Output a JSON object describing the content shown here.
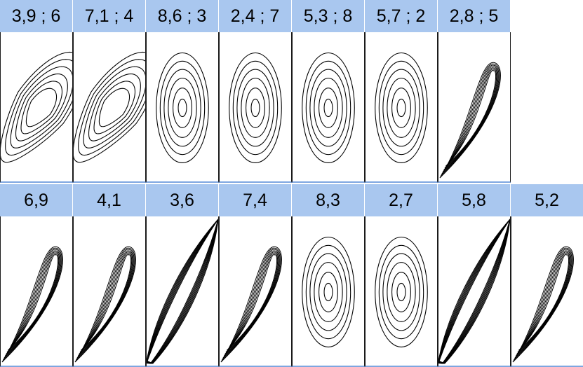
{
  "colors": {
    "header_bg": "#a9c7ef",
    "rule": "#7ea6e0",
    "contour": "#000000"
  },
  "rows": [
    {
      "panels": [
        {
          "label": "3,9 ; 6",
          "shape": "skew-ellipse"
        },
        {
          "label": "7,1 ; 4",
          "shape": "skew-ellipse"
        },
        {
          "label": "8,6 ; 3",
          "shape": "concentric-ellipse"
        },
        {
          "label": "2,4 ; 7",
          "shape": "concentric-ellipse"
        },
        {
          "label": "5,3 ; 8",
          "shape": "concentric-ellipse"
        },
        {
          "label": "5,7 ; 2",
          "shape": "concentric-ellipse"
        },
        {
          "label": "2,8 ; 5",
          "shape": "needle-tail"
        }
      ]
    },
    {
      "panels": [
        {
          "label": "6,9",
          "shape": "needle-tail"
        },
        {
          "label": "4,1",
          "shape": "needle-tail"
        },
        {
          "label": "3,6",
          "shape": "diagonal-band"
        },
        {
          "label": "7,4",
          "shape": "needle-tail"
        },
        {
          "label": "8,3",
          "shape": "concentric-ellipse"
        },
        {
          "label": "2,7",
          "shape": "concentric-ellipse"
        },
        {
          "label": "5,8",
          "shape": "diagonal-band"
        },
        {
          "label": "5,2",
          "shape": "needle-tail"
        }
      ]
    }
  ]
}
